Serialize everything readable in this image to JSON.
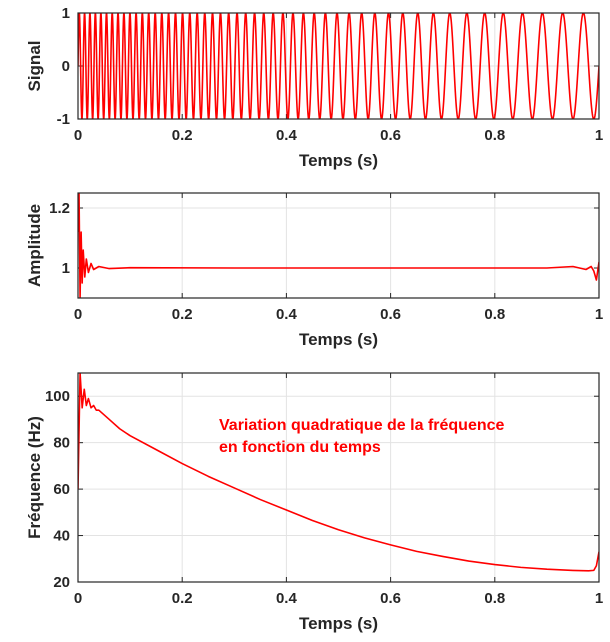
{
  "colors": {
    "line": "#ff0000",
    "axes": "#262626",
    "grid": "#e3e3e3",
    "background": "#ffffff"
  },
  "chart_data": [
    {
      "type": "line",
      "xlabel": "Temps (s)",
      "ylabel": "Signal",
      "xlim": [
        0,
        1
      ],
      "ylim": [
        -1,
        1
      ],
      "xticks": [
        "0",
        "0.2",
        "0.4",
        "0.6",
        "0.8",
        "1"
      ],
      "yticks": [
        "-1",
        "0",
        "1"
      ],
      "grid": true,
      "description_of_series": "sinusoid of unit amplitude whose instantaneous frequency falls quadratically from about 100 Hz at t=0 to about 25 Hz at t=1",
      "series": [
        {
          "kind": "chirp",
          "amplitude": 1,
          "freq_start_hz": 100,
          "freq_end_hz": 25
        }
      ]
    },
    {
      "type": "line",
      "xlabel": "Temps (s)",
      "ylabel": "Amplitude",
      "xlim": [
        0,
        1
      ],
      "ylim": [
        0.9,
        1.25
      ],
      "xticks": [
        "0",
        "0.2",
        "0.4",
        "0.6",
        "0.8",
        "1"
      ],
      "yticks": [
        "1",
        "1.2"
      ],
      "grid": true,
      "series": [
        {
          "x": [
            0,
            0.002,
            0.004,
            0.006,
            0.008,
            0.01,
            0.013,
            0.016,
            0.02,
            0.025,
            0.03,
            0.04,
            0.06,
            0.1,
            0.3,
            0.5,
            0.7,
            0.9,
            0.95,
            0.975,
            0.985,
            0.99,
            0.995,
            1.0
          ],
          "y": [
            1.12,
            1.25,
            0.9,
            1.12,
            0.95,
            1.06,
            0.97,
            1.03,
            0.985,
            1.015,
            0.995,
            1.005,
            0.998,
            1.001,
            1.0,
            1.0,
            1.0,
            1.0,
            1.005,
            0.995,
            1.005,
            0.99,
            0.96,
            1.02
          ]
        }
      ]
    },
    {
      "type": "line",
      "xlabel": "Temps (s)",
      "ylabel": "Fréquence (Hz)",
      "xlim": [
        0,
        1
      ],
      "ylim": [
        20,
        110
      ],
      "xticks": [
        "0",
        "0.2",
        "0.4",
        "0.6",
        "0.8",
        "1"
      ],
      "yticks": [
        "20",
        "40",
        "60",
        "80",
        "100"
      ],
      "grid": true,
      "annotation_lines": [
        "Variation quadratique de la fréquence",
        "en fonction du temps"
      ],
      "series": [
        {
          "x": [
            0,
            0.004,
            0.008,
            0.012,
            0.016,
            0.02,
            0.025,
            0.03,
            0.035,
            0.04,
            0.05,
            0.06,
            0.08,
            0.1,
            0.15,
            0.2,
            0.25,
            0.3,
            0.35,
            0.4,
            0.45,
            0.5,
            0.55,
            0.6,
            0.65,
            0.7,
            0.75,
            0.8,
            0.85,
            0.9,
            0.95,
            0.98,
            0.99,
            0.995,
            1.0
          ],
          "y": [
            60,
            110,
            95,
            103,
            96,
            99,
            95,
            96,
            94,
            94,
            92,
            90,
            86,
            83,
            77,
            71,
            65.5,
            60.5,
            55.5,
            51,
            46.5,
            42.5,
            39,
            36,
            33.2,
            31,
            29,
            27.5,
            26.3,
            25.5,
            25,
            24.8,
            25,
            27,
            33
          ]
        }
      ]
    }
  ]
}
